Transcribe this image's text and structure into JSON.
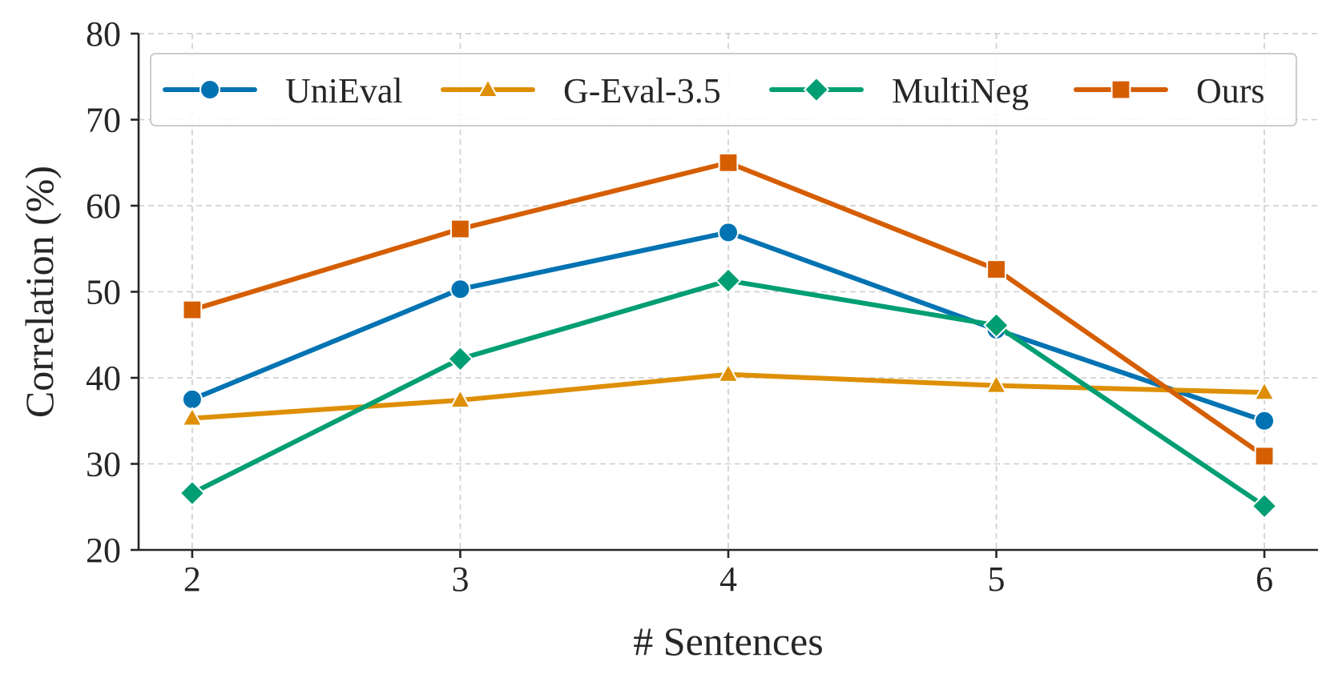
{
  "chart_data": {
    "type": "line",
    "title": "",
    "xlabel": "# Sentences",
    "ylabel": "Correlation (%)",
    "x": [
      2,
      3,
      4,
      5,
      6
    ],
    "x_tick_labels": [
      "2",
      "3",
      "4",
      "5",
      "6"
    ],
    "y_tick_labels": [
      "20",
      "30",
      "40",
      "50",
      "60",
      "70",
      "80"
    ],
    "xlim": [
      1.8,
      6.2
    ],
    "ylim": [
      20,
      80
    ],
    "grid": true,
    "legend_position": "top",
    "series": [
      {
        "name": "UniEval",
        "color": "#0173B2",
        "marker": "circle",
        "values": [
          37.5,
          50.3,
          56.9,
          45.6,
          35.0
        ]
      },
      {
        "name": "G-Eval-3.5",
        "color": "#DE8F05",
        "marker": "triangle",
        "values": [
          35.3,
          37.4,
          40.4,
          39.1,
          38.3
        ]
      },
      {
        "name": "MultiNeg",
        "color": "#029E73",
        "marker": "diamond",
        "values": [
          26.6,
          42.2,
          51.3,
          46.1,
          25.1
        ]
      },
      {
        "name": "Ours",
        "color": "#D55E00",
        "marker": "square",
        "values": [
          47.9,
          57.3,
          65.0,
          52.6,
          30.9
        ]
      }
    ]
  }
}
